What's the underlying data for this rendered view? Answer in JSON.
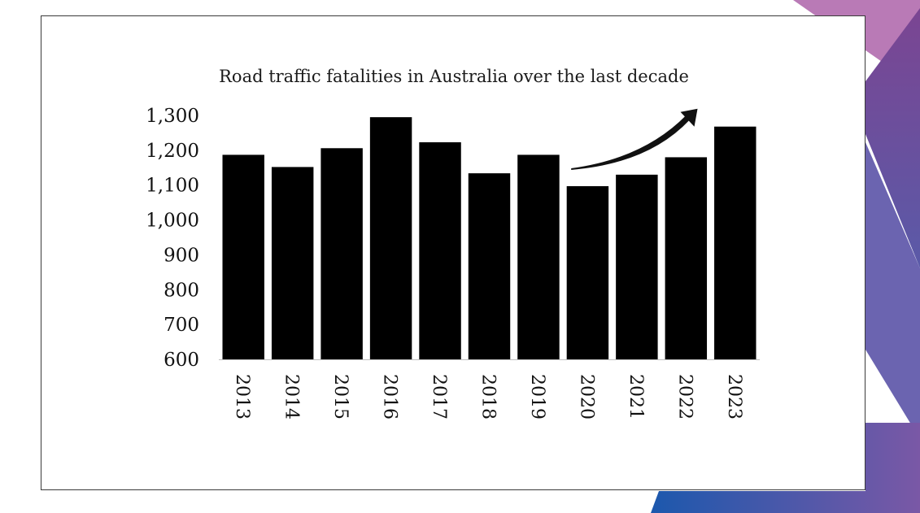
{
  "slide": {
    "accent_colors": [
      "#b778b3",
      "#7b4290",
      "#4f4fa8",
      "#1f5fb0"
    ]
  },
  "chart_data": {
    "type": "bar",
    "title": "Road traffic fatalities in Australia over the last decade",
    "xlabel": "",
    "ylabel": "",
    "categories": [
      "2013",
      "2014",
      "2015",
      "2016",
      "2017",
      "2018",
      "2019",
      "2020",
      "2021",
      "2022",
      "2023"
    ],
    "values": [
      1187,
      1152,
      1206,
      1295,
      1223,
      1134,
      1187,
      1097,
      1130,
      1180,
      1268
    ],
    "ylim": [
      600,
      1300
    ],
    "yticks": [
      600,
      700,
      800,
      900,
      1000,
      1100,
      1200,
      1300
    ],
    "ytick_labels": [
      "600",
      "700",
      "800",
      "900",
      "1,000",
      "1,100",
      "1,200",
      "1,300"
    ],
    "bar_color": "#000000",
    "grid": false,
    "legend": "none",
    "annotation": {
      "type": "arrow",
      "from_category": "2020",
      "to_category": "2023",
      "meaning": "upward trend"
    }
  }
}
